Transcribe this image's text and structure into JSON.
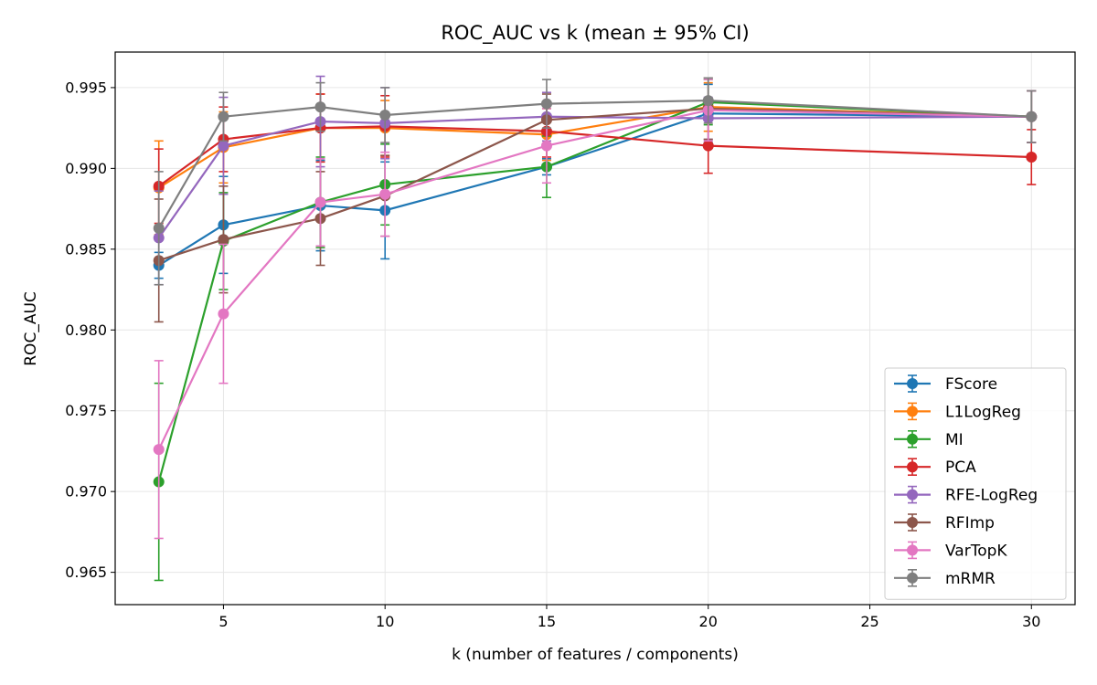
{
  "chart_data": {
    "type": "line",
    "title": "ROC_AUC vs k (mean ± 95% CI)",
    "xlabel": "k (number of features / components)",
    "ylabel": "ROC_AUC",
    "xlim": [
      1.65,
      31.35
    ],
    "ylim": [
      0.963,
      0.9972
    ],
    "xticks": [
      5,
      10,
      15,
      20,
      25,
      30
    ],
    "yticks": [
      0.965,
      0.97,
      0.975,
      0.98,
      0.985,
      0.99,
      0.995
    ],
    "grid": true,
    "legend_position": "lower-right",
    "error_bars": "95% CI",
    "x": [
      3,
      5,
      8,
      10,
      15,
      20,
      30
    ],
    "series": [
      {
        "name": "FScore",
        "color": "#1f77b4",
        "values": [
          0.984,
          0.9865,
          0.9877,
          0.9874,
          0.9901,
          0.9934,
          0.9932
        ],
        "errors": [
          0.0008,
          0.003,
          0.0028,
          0.003,
          0.0005,
          0.0018,
          0.0016
        ]
      },
      {
        "name": "L1LogReg",
        "color": "#ff7f0e",
        "values": [
          0.9888,
          0.9913,
          0.9925,
          0.9925,
          0.9921,
          0.9938,
          0.9932
        ],
        "errors": [
          0.0029,
          0.0022,
          0.0021,
          0.0017,
          0.0016,
          0.0015,
          0.0016
        ]
      },
      {
        "name": "MI",
        "color": "#2ca02c",
        "values": [
          0.9706,
          0.9855,
          0.9879,
          0.989,
          0.9901,
          0.9941,
          0.9932
        ],
        "errors": [
          0.0061,
          0.003,
          0.0028,
          0.0025,
          0.0019,
          0.0014,
          0.0016
        ]
      },
      {
        "name": "PCA",
        "color": "#d62728",
        "values": [
          0.9889,
          0.9918,
          0.9925,
          0.9926,
          0.9923,
          0.9914,
          0.9907
        ],
        "errors": [
          0.0023,
          0.002,
          0.0021,
          0.0019,
          0.0016,
          0.0017,
          0.0017
        ]
      },
      {
        "name": "RFE-LogReg",
        "color": "#9467bd",
        "values": [
          0.9857,
          0.9914,
          0.9929,
          0.9928,
          0.9932,
          0.9931,
          0.9932
        ],
        "errors": [
          0.0029,
          0.003,
          0.0028,
          0.0022,
          0.0015,
          0.0013,
          0.0016
        ]
      },
      {
        "name": "RFImp",
        "color": "#8c564b",
        "values": [
          0.9843,
          0.9856,
          0.9869,
          0.9883,
          0.993,
          0.9937,
          0.9932
        ],
        "errors": [
          0.0038,
          0.0033,
          0.0029,
          0.0025,
          0.0016,
          0.0019,
          0.0016
        ]
      },
      {
        "name": "VarTopK",
        "color": "#e377c2",
        "values": [
          0.9726,
          0.981,
          0.9879,
          0.9884,
          0.9914,
          0.9936,
          0.9932
        ],
        "errors": [
          0.0055,
          0.0043,
          0.0027,
          0.0026,
          0.0023,
          0.0019,
          0.0016
        ]
      },
      {
        "name": "mRMR",
        "color": "#7f7f7f",
        "values": [
          0.9863,
          0.9932,
          0.9938,
          0.9933,
          0.994,
          0.9942,
          0.9932
        ],
        "errors": [
          0.0035,
          0.0015,
          0.0015,
          0.0017,
          0.0015,
          0.0014,
          0.0016
        ]
      }
    ]
  }
}
